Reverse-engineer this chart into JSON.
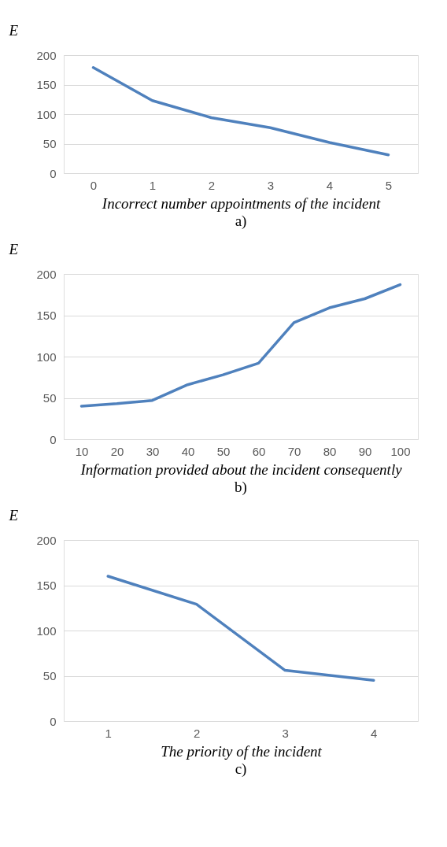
{
  "chart_data": [
    {
      "type": "line",
      "categories": [
        "0",
        "1",
        "2",
        "3",
        "4",
        "5"
      ],
      "values": [
        179,
        123,
        94,
        77,
        52,
        31
      ],
      "color": "#4f81bd",
      "ylim": [
        0,
        200
      ],
      "yticks": [
        0,
        50,
        100,
        150,
        200
      ],
      "grid": "y",
      "xlabel": "Incorrect number appointments of the incident",
      "ylabel": "E",
      "annotations": [
        "a)"
      ]
    },
    {
      "type": "line",
      "categories": [
        "10",
        "20",
        "30",
        "40",
        "50",
        "60",
        "70",
        "80",
        "90",
        "100"
      ],
      "values": [
        40,
        43,
        47,
        66,
        78,
        92,
        141,
        159,
        170,
        187
      ],
      "color": "#4f81bd",
      "ylim": [
        0,
        200
      ],
      "yticks": [
        0,
        50,
        100,
        150,
        200
      ],
      "grid": "y",
      "xlabel": "Information provided about the incident consequently",
      "ylabel": "E",
      "annotations": [
        "b)"
      ]
    },
    {
      "type": "line",
      "categories": [
        "1",
        "2",
        "3",
        "4"
      ],
      "values": [
        160,
        129,
        56,
        45
      ],
      "color": "#4f81bd",
      "ylim": [
        0,
        200
      ],
      "yticks": [
        0,
        50,
        100,
        150,
        200
      ],
      "grid": "y",
      "xlabel": "The priority of the incident",
      "ylabel": "E",
      "annotations": [
        "c)"
      ]
    }
  ]
}
